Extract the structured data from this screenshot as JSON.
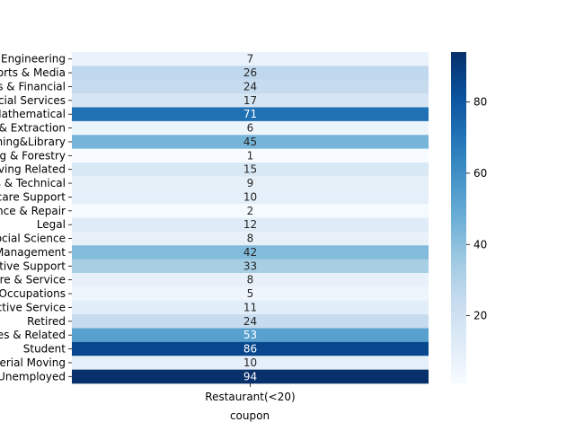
{
  "chart_data": {
    "type": "heatmap",
    "x_categories": [
      "Restaurant(<20)"
    ],
    "xlabel": "coupon",
    "ylabel": "",
    "y_categories": [
      "Architecture & Engineering",
      "Arts Design Entertainment Sports & Media",
      "Business & Financial",
      "Community & Social Services",
      "Computer & Mathematical",
      "Construction & Extraction",
      "Education&Training&Library",
      "Farming Fishing & Forestry",
      "Food Preparation & Serving Related",
      "Healthcare Practitioners & Technical",
      "Healthcare Support",
      "Installation Maintenance & Repair",
      "Legal",
      "Life Physical Social Science",
      "Management",
      "Office & Administrative Support",
      "Personal Care & Service",
      "Production Occupations",
      "Protective Service",
      "Retired",
      "Sales & Related",
      "Student",
      "Transportation & Material Moving",
      "Unemployed"
    ],
    "values": [
      7,
      26,
      24,
      17,
      71,
      6,
      45,
      1,
      15,
      9,
      10,
      2,
      12,
      8,
      42,
      33,
      8,
      5,
      11,
      24,
      53,
      86,
      10,
      94
    ],
    "colormap": "Blues",
    "vmin": 1,
    "vmax": 94,
    "colorbar_ticks": [
      20,
      40,
      60,
      80
    ]
  }
}
